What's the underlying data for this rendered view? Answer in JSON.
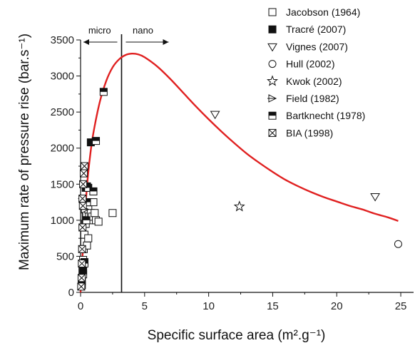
{
  "chart_data": {
    "type": "scatter",
    "xlabel": "Specific surface area (m².g⁻¹)",
    "ylabel": "Maximum rate of pressure rise (bar.s⁻¹)",
    "xlim": [
      0,
      26
    ],
    "ylim": [
      0,
      3500
    ],
    "xticks": [
      "0",
      "5",
      "10",
      "15",
      "20",
      "25"
    ],
    "yticks": [
      "0",
      "500",
      "1000",
      "1500",
      "2000",
      "2500",
      "3000",
      "3500"
    ],
    "grid": false,
    "legend_position": "top-right",
    "regions": {
      "boundary_x": 3.2,
      "left_label": "micro",
      "right_label": "nano"
    },
    "curve": {
      "color": "#e02020",
      "x": [
        0,
        0.25,
        0.5,
        0.75,
        1,
        1.5,
        2,
        2.5,
        3,
        3.5,
        4,
        4.5,
        5,
        6,
        7,
        8,
        9,
        10,
        11,
        12,
        13,
        14,
        15,
        16,
        17,
        18,
        19,
        20,
        21,
        22,
        23,
        24,
        24.8
      ],
      "y": [
        0,
        820,
        1470,
        1900,
        2210,
        2640,
        2930,
        3120,
        3230,
        3290,
        3310,
        3300,
        3260,
        3130,
        2960,
        2770,
        2580,
        2400,
        2230,
        2070,
        1920,
        1790,
        1670,
        1560,
        1470,
        1390,
        1320,
        1260,
        1200,
        1150,
        1090,
        1040,
        990
      ]
    },
    "series": [
      {
        "name": "Jacobson (1964)",
        "marker": "open-square",
        "x": [
          0.1,
          0.15,
          0.2,
          0.25,
          0.3,
          0.35,
          0.4,
          0.45,
          0.5,
          0.55,
          0.6,
          0.65,
          0.7,
          0.8,
          0.9,
          1.0,
          1.1,
          1.2,
          1.4,
          0.3,
          0.5,
          0.6,
          2.5
        ],
        "y": [
          150,
          300,
          450,
          600,
          800,
          950,
          1050,
          1100,
          1200,
          1250,
          1150,
          1050,
          1000,
          1100,
          1050,
          1250,
          1100,
          1000,
          980,
          700,
          650,
          750,
          1100
        ]
      },
      {
        "name": "Tracré (2007)",
        "marker": "filled-square",
        "x": [
          0.2,
          0.3,
          0.4,
          0.5,
          0.8,
          1.0
        ],
        "y": [
          300,
          420,
          1450,
          1470,
          2080,
          1400
        ]
      },
      {
        "name": "Vignes (2007)",
        "marker": "open-triangle-down",
        "x": [
          10.5,
          23.0
        ],
        "y": [
          2470,
          1330
        ]
      },
      {
        "name": "Hull (2002)",
        "marker": "open-circle",
        "x": [
          24.8
        ],
        "y": [
          670
        ]
      },
      {
        "name": "Kwok (2002)",
        "marker": "open-star",
        "x": [
          12.4
        ],
        "y": [
          1190
        ]
      },
      {
        "name": "Field (1982)",
        "marker": "triangle-right-bar",
        "x": [
          0.2,
          0.35
        ],
        "y": [
          1300,
          1150
        ]
      },
      {
        "name": "Bartknecht (1978)",
        "marker": "half-filled-square",
        "x": [
          0.1,
          0.2,
          0.3,
          0.4,
          0.45,
          0.5,
          0.6,
          1.0,
          1.2,
          1.8
        ],
        "y": [
          100,
          250,
          400,
          950,
          1000,
          1250,
          1450,
          1400,
          2100,
          2780
        ]
      },
      {
        "name": "BIA (1998)",
        "marker": "crossed-square",
        "x": [
          0.05,
          0.08,
          0.1,
          0.12,
          0.15,
          0.18,
          0.2,
          0.25,
          0.3,
          0.15
        ],
        "y": [
          80,
          200,
          400,
          600,
          900,
          1200,
          1500,
          1650,
          1750,
          1300
        ]
      }
    ]
  }
}
